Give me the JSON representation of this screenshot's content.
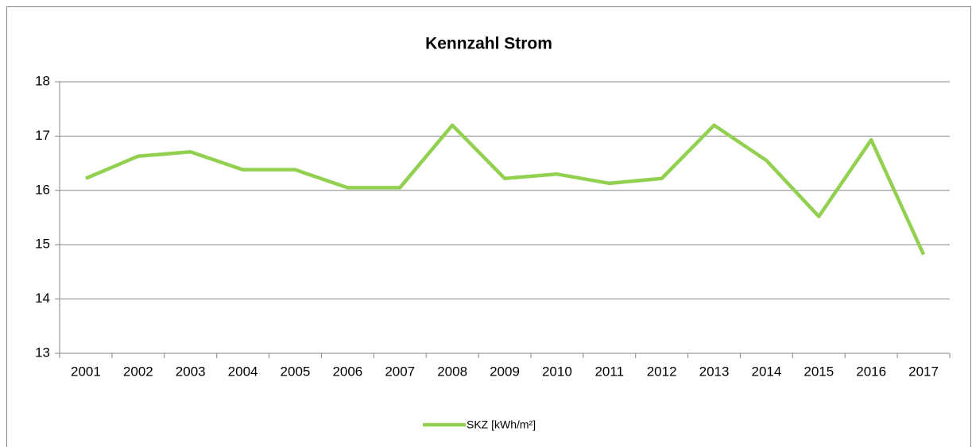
{
  "chart_data": {
    "type": "line",
    "title": "Kennzahl Strom",
    "categories": [
      "2001",
      "2002",
      "2003",
      "2004",
      "2005",
      "2006",
      "2007",
      "2008",
      "2009",
      "2010",
      "2011",
      "2012",
      "2013",
      "2014",
      "2015",
      "2016",
      "2017"
    ],
    "series": [
      {
        "name": "SKZ [kWh/m²]",
        "color": "#92d050",
        "values": [
          16.22,
          16.63,
          16.71,
          16.38,
          16.38,
          16.05,
          16.05,
          17.2,
          16.22,
          16.3,
          16.13,
          16.22,
          17.2,
          16.55,
          15.52,
          16.93,
          14.82
        ]
      }
    ],
    "ylim": [
      13,
      18
    ],
    "yticks": [
      13,
      14,
      15,
      16,
      17,
      18
    ],
    "grid": true,
    "legend": "bottom"
  }
}
